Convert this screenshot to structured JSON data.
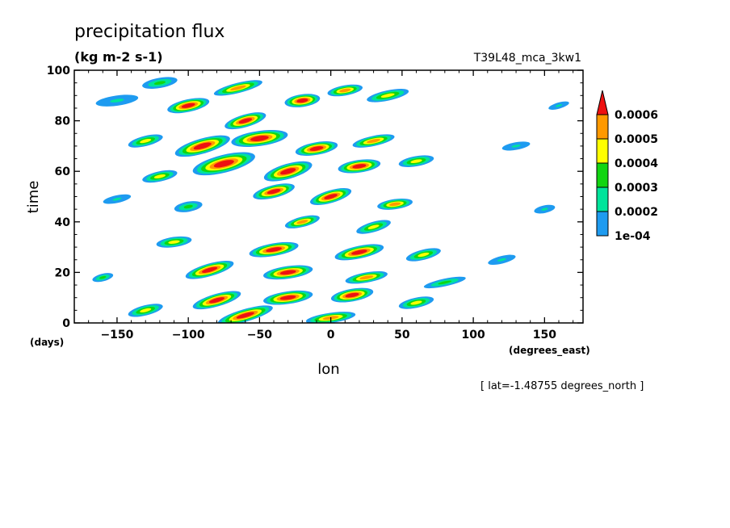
{
  "chart_data": {
    "type": "heatmap",
    "title": "precipitation flux",
    "units": "(kg m-2 s-1)",
    "run_label": "T39L48_mca_3kw1",
    "xlabel": "lon",
    "xunits": "(degrees_east)",
    "ylabel": "time",
    "yunits": "(days)",
    "footnote": "[ lat=-1.48755 degrees_north ]",
    "xlim": [
      -180,
      177
    ],
    "ylim": [
      0,
      100
    ],
    "x_ticks": [
      -150,
      -100,
      -50,
      0,
      50,
      100,
      150
    ],
    "y_ticks": [
      0,
      20,
      40,
      60,
      80,
      100
    ],
    "x_tick_labels": [
      "−150",
      "−100",
      "−50",
      "0",
      "50",
      "100",
      "150"
    ],
    "y_tick_labels": [
      "0",
      "20",
      "40",
      "60",
      "80",
      "100"
    ],
    "colorbar": {
      "levels": [
        0.0001,
        0.0002,
        0.0003,
        0.0004,
        0.0005,
        0.0006
      ],
      "labels": [
        "1e-04",
        "0.0002",
        "0.0003",
        "0.0004",
        "0.0005",
        "0.0006"
      ],
      "colors": [
        "#1e9bf0",
        "#00e49b",
        "#11d511",
        "#ffff00",
        "#ff9900",
        "#ee1111"
      ]
    },
    "features": [
      {
        "lon": -150,
        "time": 88,
        "dlon": 30,
        "dtime": 2,
        "level": 1
      },
      {
        "lon": -120,
        "time": 95,
        "dlon": 25,
        "dtime": 2,
        "level": 2
      },
      {
        "lon": -100,
        "time": 86,
        "dlon": 30,
        "dtime": 2.5,
        "level": 5
      },
      {
        "lon": -65,
        "time": 93,
        "dlon": 35,
        "dtime": 2,
        "level": 4
      },
      {
        "lon": -60,
        "time": 80,
        "dlon": 30,
        "dtime": 2.5,
        "level": 5
      },
      {
        "lon": -20,
        "time": 88,
        "dlon": 25,
        "dtime": 2.5,
        "level": 5
      },
      {
        "lon": 10,
        "time": 92,
        "dlon": 25,
        "dtime": 2,
        "level": 4
      },
      {
        "lon": 40,
        "time": 90,
        "dlon": 30,
        "dtime": 2,
        "level": 3
      },
      {
        "lon": -130,
        "time": 72,
        "dlon": 25,
        "dtime": 2,
        "level": 3
      },
      {
        "lon": -90,
        "time": 70,
        "dlon": 40,
        "dtime": 3,
        "level": 5
      },
      {
        "lon": -50,
        "time": 73,
        "dlon": 40,
        "dtime": 3,
        "level": 5
      },
      {
        "lon": -10,
        "time": 69,
        "dlon": 30,
        "dtime": 2.5,
        "level": 5
      },
      {
        "lon": 30,
        "time": 72,
        "dlon": 30,
        "dtime": 2,
        "level": 4
      },
      {
        "lon": -75,
        "time": 63,
        "dlon": 45,
        "dtime": 3.5,
        "level": 5
      },
      {
        "lon": -30,
        "time": 60,
        "dlon": 35,
        "dtime": 3,
        "level": 5
      },
      {
        "lon": 20,
        "time": 62,
        "dlon": 30,
        "dtime": 2.5,
        "level": 5
      },
      {
        "lon": 60,
        "time": 64,
        "dlon": 25,
        "dtime": 2,
        "level": 3
      },
      {
        "lon": -120,
        "time": 58,
        "dlon": 25,
        "dtime": 2,
        "level": 3
      },
      {
        "lon": -40,
        "time": 52,
        "dlon": 30,
        "dtime": 2.5,
        "level": 5
      },
      {
        "lon": 0,
        "time": 50,
        "dlon": 30,
        "dtime": 2.5,
        "level": 5
      },
      {
        "lon": 45,
        "time": 47,
        "dlon": 25,
        "dtime": 2,
        "level": 4
      },
      {
        "lon": -100,
        "time": 46,
        "dlon": 20,
        "dtime": 2,
        "level": 2
      },
      {
        "lon": -150,
        "time": 49,
        "dlon": 20,
        "dtime": 1.5,
        "level": 1
      },
      {
        "lon": -20,
        "time": 40,
        "dlon": 25,
        "dtime": 2,
        "level": 4
      },
      {
        "lon": 30,
        "time": 38,
        "dlon": 25,
        "dtime": 2,
        "level": 3
      },
      {
        "lon": -110,
        "time": 32,
        "dlon": 25,
        "dtime": 2,
        "level": 3
      },
      {
        "lon": -40,
        "time": 29,
        "dlon": 35,
        "dtime": 2.5,
        "level": 5
      },
      {
        "lon": 20,
        "time": 28,
        "dlon": 35,
        "dtime": 2.5,
        "level": 5
      },
      {
        "lon": 65,
        "time": 27,
        "dlon": 25,
        "dtime": 2,
        "level": 3
      },
      {
        "lon": -85,
        "time": 21,
        "dlon": 35,
        "dtime": 2.5,
        "level": 5
      },
      {
        "lon": -30,
        "time": 20,
        "dlon": 35,
        "dtime": 2.5,
        "level": 5
      },
      {
        "lon": 25,
        "time": 18,
        "dlon": 30,
        "dtime": 2,
        "level": 4
      },
      {
        "lon": 80,
        "time": 16,
        "dlon": 30,
        "dtime": 1.5,
        "level": 2
      },
      {
        "lon": -160,
        "time": 18,
        "dlon": 15,
        "dtime": 1.5,
        "level": 2
      },
      {
        "lon": -80,
        "time": 9,
        "dlon": 35,
        "dtime": 2.5,
        "level": 5
      },
      {
        "lon": -30,
        "time": 10,
        "dlon": 35,
        "dtime": 2.5,
        "level": 5
      },
      {
        "lon": 15,
        "time": 11,
        "dlon": 30,
        "dtime": 2.5,
        "level": 5
      },
      {
        "lon": 60,
        "time": 8,
        "dlon": 25,
        "dtime": 2,
        "level": 3
      },
      {
        "lon": -130,
        "time": 5,
        "dlon": 25,
        "dtime": 2,
        "level": 3
      },
      {
        "lon": -60,
        "time": 3,
        "dlon": 40,
        "dtime": 2.5,
        "level": 5
      },
      {
        "lon": 0,
        "time": 2,
        "dlon": 35,
        "dtime": 2,
        "level": 4
      },
      {
        "lon": 130,
        "time": 70,
        "dlon": 20,
        "dtime": 1.5,
        "level": 1
      },
      {
        "lon": 150,
        "time": 45,
        "dlon": 15,
        "dtime": 1.5,
        "level": 1
      },
      {
        "lon": 120,
        "time": 25,
        "dlon": 20,
        "dtime": 1.5,
        "level": 1
      },
      {
        "lon": 160,
        "time": 86,
        "dlon": 15,
        "dtime": 1.2,
        "level": 1
      }
    ]
  }
}
